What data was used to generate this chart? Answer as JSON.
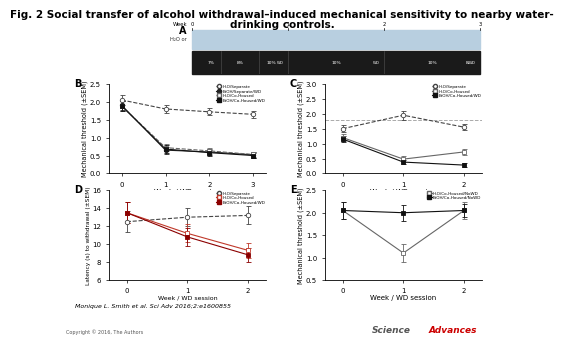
{
  "title_line1": "Fig. 2 Social transfer of alcohol withdrawal–induced mechanical sensitivity to nearby water-",
  "title_line2": "drinking controls.",
  "title_fontsize": 7.5,
  "panel_B": {
    "xlabel": "Week / WD session",
    "ylabel": "Mechanical threshold (±SEM)",
    "xlim": [
      -0.3,
      3.3
    ],
    "ylim": [
      0.0,
      2.5
    ],
    "yticks": [
      0.0,
      0.5,
      1.0,
      1.5,
      2.0,
      2.5
    ],
    "xticks": [
      0,
      1,
      2,
      3
    ],
    "legend_labels": [
      "H₂O/Separate",
      "EtOH/Separate/WD",
      "H₂O/Co-Housed",
      "EtOH/Co-Housed/WD"
    ],
    "h2o_sep": {
      "x": [
        0,
        1,
        2,
        3
      ],
      "y": [
        2.05,
        1.8,
        1.72,
        1.65
      ],
      "err": [
        0.13,
        0.1,
        0.1,
        0.1
      ]
    },
    "etoh_sep_wd": {
      "x": [
        0,
        1,
        2,
        3
      ],
      "y": [
        1.9,
        0.65,
        0.6,
        0.52
      ],
      "err": [
        0.13,
        0.1,
        0.08,
        0.08
      ]
    },
    "h2o_co": {
      "x": [
        0,
        1,
        2,
        3
      ],
      "y": [
        1.88,
        0.72,
        0.63,
        0.53
      ],
      "err": [
        0.13,
        0.1,
        0.08,
        0.08
      ]
    },
    "etoh_co_wd": {
      "x": [
        0,
        1,
        2,
        3
      ],
      "y": [
        1.88,
        0.68,
        0.58,
        0.5
      ],
      "err": [
        0.13,
        0.1,
        0.08,
        0.08
      ]
    }
  },
  "panel_C": {
    "xlabel": "Week / WD session",
    "ylabel": "Mechanical threshold (±SEM)",
    "xlim": [
      -0.3,
      2.3
    ],
    "ylim": [
      0.0,
      3.0
    ],
    "yticks": [
      0.0,
      0.5,
      1.0,
      1.5,
      2.0,
      2.5,
      3.0
    ],
    "xticks": [
      0,
      1,
      2
    ],
    "hline_y": 1.78,
    "legend_labels": [
      "H₂O/Separate",
      "H₂O/Co-Housed",
      "EtOH/Co-Housed/WD"
    ],
    "h2o_sep": {
      "x": [
        0,
        1,
        2
      ],
      "y": [
        1.5,
        1.95,
        1.55
      ],
      "err": [
        0.12,
        0.15,
        0.1
      ]
    },
    "h2o_co": {
      "x": [
        0,
        1,
        2
      ],
      "y": [
        1.2,
        0.48,
        0.72
      ],
      "err": [
        0.12,
        0.1,
        0.1
      ]
    },
    "etoh_co_wd": {
      "x": [
        0,
        1,
        2
      ],
      "y": [
        1.15,
        0.38,
        0.28
      ],
      "err": [
        0.1,
        0.08,
        0.06
      ]
    }
  },
  "panel_D": {
    "xlabel": "Week / WD session",
    "ylabel": "Latency (s) to withdrawal (±SEM)",
    "xlim": [
      -0.3,
      2.3
    ],
    "ylim": [
      6,
      16
    ],
    "yticks": [
      6,
      8,
      10,
      12,
      14,
      16
    ],
    "xticks": [
      0,
      1,
      2
    ],
    "legend_labels": [
      "H₂O/Separate",
      "H₂O/Co-Housed",
      "EtOH/Co-Housed/WD"
    ],
    "h2o_sep": {
      "x": [
        0,
        1,
        2
      ],
      "y": [
        12.5,
        13.0,
        13.2
      ],
      "err": [
        1.2,
        1.0,
        1.0
      ]
    },
    "h2o_co": {
      "x": [
        0,
        1,
        2
      ],
      "y": [
        13.5,
        11.2,
        9.3
      ],
      "err": [
        1.2,
        1.0,
        0.8
      ]
    },
    "etoh_co_wd": {
      "x": [
        0,
        1,
        2
      ],
      "y": [
        13.5,
        10.8,
        8.8
      ],
      "err": [
        1.2,
        1.0,
        0.8
      ]
    }
  },
  "panel_E": {
    "xlabel": "Week / WD session",
    "ylabel": "Mechanical threshold (±SEM)",
    "xlim": [
      -0.3,
      2.3
    ],
    "ylim": [
      0.5,
      2.5
    ],
    "yticks": [
      0.5,
      1.0,
      1.5,
      2.0,
      2.5
    ],
    "xticks": [
      0,
      1,
      2
    ],
    "legend_labels": [
      "H₂O/Co-Housed/NoWD",
      "EtOH/Co-Housed/NoWD"
    ],
    "h2o_co_nowd": {
      "x": [
        0,
        1,
        2
      ],
      "y": [
        2.05,
        1.1,
        2.05
      ],
      "err": [
        0.18,
        0.2,
        0.18
      ]
    },
    "etoh_co_nowd": {
      "x": [
        0,
        1,
        2
      ],
      "y": [
        2.05,
        2.0,
        2.05
      ],
      "err": [
        0.18,
        0.18,
        0.15
      ]
    }
  },
  "citation": "Monique L. Smith et al. Sci Adv 2016;2:e1600855",
  "copyright": "Copyright © 2016, The Authors"
}
